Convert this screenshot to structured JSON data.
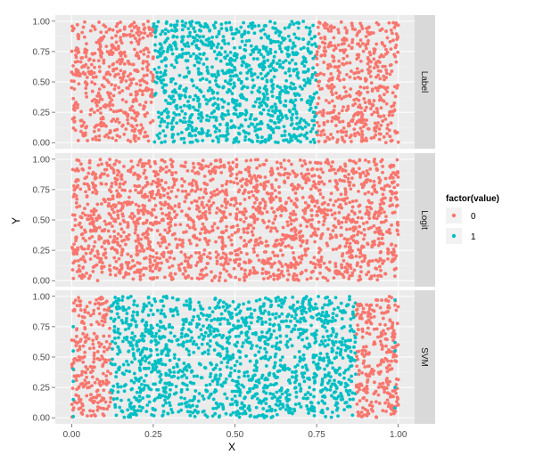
{
  "chart_data": {
    "type": "scatter",
    "xlabel": "X",
    "ylabel": "Y",
    "xlim": [
      0,
      1
    ],
    "ylim": [
      0,
      1
    ],
    "x_ticks": [
      "0.00",
      "0.25",
      "0.50",
      "0.75",
      "1.00"
    ],
    "y_ticks": [
      "0.00",
      "0.25",
      "0.50",
      "0.75",
      "1.00"
    ],
    "facet_layout": "vertical",
    "facet_strip_position": "right",
    "grid": true,
    "legend": {
      "title": "factor(value)",
      "placement": "right",
      "entries": [
        {
          "label": "0",
          "color": "#F8766D"
        },
        {
          "label": "1",
          "color": "#00BFC4"
        }
      ]
    },
    "panels": [
      {
        "label": "Label",
        "point_count": 2000,
        "regions": [
          {
            "x_from": 0.0,
            "x_to": 0.25,
            "value": "0"
          },
          {
            "x_from": 0.25,
            "x_to": 0.75,
            "value": "1"
          },
          {
            "x_from": 0.75,
            "x_to": 1.0,
            "value": "0"
          }
        ]
      },
      {
        "label": "Logit",
        "point_count": 2000,
        "regions": [
          {
            "x_from": 0.0,
            "x_to": 1.0,
            "value": "0"
          }
        ]
      },
      {
        "label": "SVM",
        "point_count": 2000,
        "regions": [
          {
            "x_from": 0.0,
            "x_to": 0.12,
            "value": "0"
          },
          {
            "x_from": 0.12,
            "x_to": 0.87,
            "value": "1"
          },
          {
            "x_from": 0.87,
            "x_to": 1.0,
            "value": "0"
          }
        ],
        "extra_points": [
          {
            "x": 0.005,
            "y": 0.55,
            "value": "1"
          },
          {
            "x": 0.005,
            "y": 0.75,
            "value": "1"
          },
          {
            "x": 0.005,
            "y": 0.3,
            "value": "1"
          },
          {
            "x": 0.005,
            "y": 0.15,
            "value": "1"
          },
          {
            "x": 0.005,
            "y": 0.4,
            "value": "1"
          },
          {
            "x": 0.005,
            "y": 0.01,
            "value": "1"
          },
          {
            "x": 0.99,
            "y": 0.97,
            "value": "1"
          },
          {
            "x": 0.99,
            "y": 0.55,
            "value": "1"
          },
          {
            "x": 0.99,
            "y": 0.25,
            "value": "1"
          },
          {
            "x": 0.99,
            "y": 0.08,
            "value": "1"
          },
          {
            "x": 0.99,
            "y": 0.62,
            "value": "1"
          }
        ]
      }
    ]
  }
}
